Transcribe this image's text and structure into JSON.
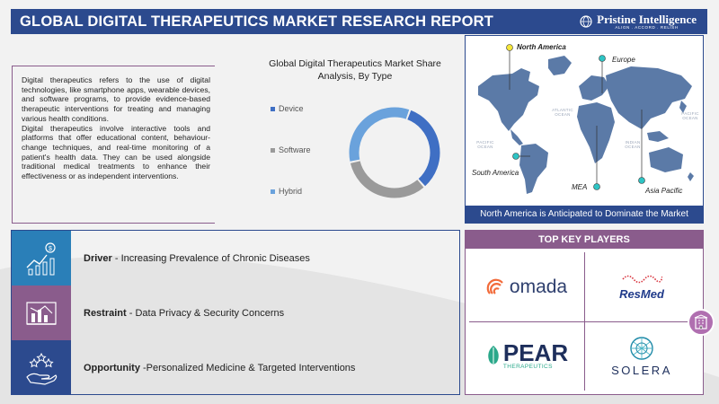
{
  "header": {
    "title": "GLOBAL DIGITAL THERAPEUTICS MARKET RESEARCH REPORT",
    "brand_name": "Pristine Intelligence",
    "brand_tagline": "ALIGN . ACCORD . RELISH"
  },
  "description": {
    "paragraph1": "Digital therapeutics refers to the use of digital technologies, like smartphone apps, wearable devices, and software programs, to provide evidence-based therapeutic interventions for treating and managing various health conditions.",
    "paragraph2": "Digital therapeutics involve interactive tools and platforms that offer educational content, behaviour-change techniques, and real-time monitoring of a patient's health data. They can be used alongside traditional medical treatments to enhance their effectiveness or as independent interventions."
  },
  "chart_data": {
    "type": "pie",
    "title": "Global Digital Therapeutics Market Share Analysis, By Type",
    "categories": [
      "Device",
      "Software",
      "Hybrid"
    ],
    "values": [
      33,
      33,
      34
    ],
    "colors": [
      "#3f6fc4",
      "#9a9a9a",
      "#6aa2dc"
    ],
    "legend": "left"
  },
  "map": {
    "regions": [
      "North America",
      "Europe",
      "South America",
      "MEA",
      "Asia Pacific"
    ],
    "oceans": {
      "atlantic": "ATLANTIC OCEAN",
      "pacific_left": "PACIFIC OCEAN",
      "pacific_right": "PACIFIC OCEAN",
      "indian": "INDIAN OCEAN"
    },
    "caption": "North America is Anticipated to Dominate the Market",
    "colors": {
      "land": "#5b7aa7",
      "highlight": "#f5e63a",
      "marker": "#2ec4c4"
    }
  },
  "dro": {
    "driver": {
      "label": "Driver",
      "text": " - Increasing Prevalence of Chronic Diseases",
      "color": "#2a7fb8"
    },
    "restraint": {
      "label": "Restraint",
      "text": " - Data Privacy & Security Concerns",
      "color": "#8a5c8c"
    },
    "opportunity": {
      "label": "Opportunity",
      "text": " -Personalized Medicine & Targeted Interventions",
      "color": "#2c4a8e"
    }
  },
  "players": {
    "title": "TOP KEY PLAYERS",
    "omada": "omada",
    "resmed": "ResMed",
    "pear_main": "PEAR",
    "pear_sub": "THERAPEUTICS",
    "solera": "SOLERA"
  }
}
